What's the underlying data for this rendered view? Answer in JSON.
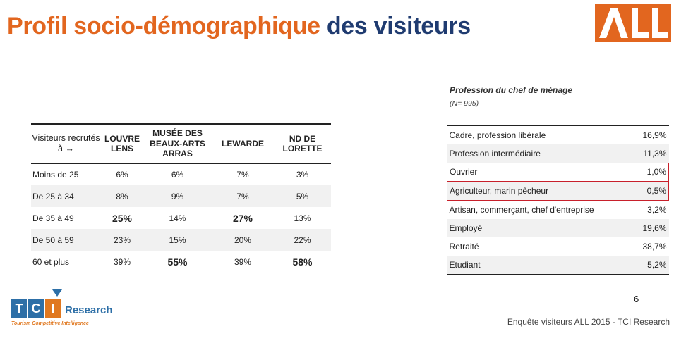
{
  "title": {
    "part1": "Profil socio-démographique",
    "part2": "des visiteurs"
  },
  "brand": {
    "logo_text": "ALL",
    "color": "#e2661f"
  },
  "visitors_table": {
    "header_label": "Visiteurs recrutés à →",
    "columns": [
      "LOUVRE LENS",
      "MUSÉE DES BEAUX-ARTS ARRAS",
      "LEWARDE",
      "ND DE LORETTE"
    ],
    "rows": [
      {
        "label": "Moins de 25",
        "values": [
          "6%",
          "6%",
          "7%",
          "3%"
        ]
      },
      {
        "label": "De 25 à 34",
        "values": [
          "8%",
          "9%",
          "7%",
          "5%"
        ]
      },
      {
        "label": "De 35 à 49",
        "values": [
          "25%",
          "14%",
          "27%",
          "13%"
        ]
      },
      {
        "label": "De 50 à 59",
        "values": [
          "23%",
          "15%",
          "20%",
          "22%"
        ]
      },
      {
        "label": "60 et plus",
        "values": [
          "39%",
          "55%",
          "39%",
          "58%"
        ]
      }
    ]
  },
  "profession_table": {
    "title": "Profession du chef de ménage",
    "n_label": "(N= 995)",
    "highlight_color": "#c8202b",
    "rows": [
      {
        "label": "Cadre, profession libérale",
        "value": "16,9%"
      },
      {
        "label": "Profession intermédiaire",
        "value": "11,3%"
      },
      {
        "label": "Ouvrier",
        "value": "1,0%"
      },
      {
        "label": "Agriculteur, marin pêcheur",
        "value": "0,5%"
      },
      {
        "label": "Artisan, commerçant, chef d'entreprise",
        "value": "3,2%"
      },
      {
        "label": "Employé",
        "value": "19,6%"
      },
      {
        "label": "Retraité",
        "value": "38,7%"
      },
      {
        "label": "Etudiant",
        "value": "5,2%"
      }
    ]
  },
  "page_number": "6",
  "footer": "Enquête visiteurs ALL 2015 - TCI Research",
  "tci_logo": {
    "letters": [
      "T",
      "C",
      "I"
    ],
    "word": "Research",
    "tagline": "Tourism Competitive Intelligence"
  }
}
